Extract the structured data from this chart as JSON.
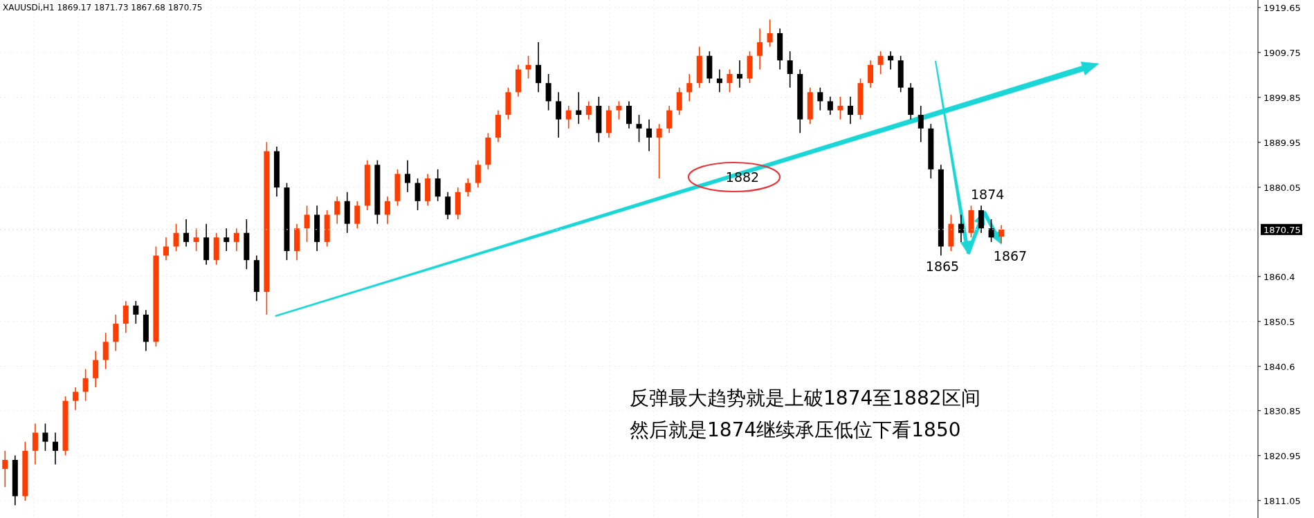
{
  "chart_data": {
    "type": "candlestick",
    "title": "XAUUSDi,H1  1869.17 1871.73 1867.68 1870.75",
    "categories": [
      null,
      null,
      null,
      null,
      null,
      null,
      null,
      null,
      null,
      null,
      null,
      null,
      null,
      null,
      null,
      null,
      null,
      null,
      null,
      null,
      null,
      null,
      null,
      null,
      null,
      null,
      null,
      null,
      null,
      null,
      null,
      null,
      null,
      null,
      null,
      null,
      null,
      null,
      null,
      null,
      null,
      null,
      null,
      null,
      null,
      null,
      null,
      null,
      null,
      null,
      null,
      null,
      null,
      null,
      null,
      null,
      null,
      null,
      null,
      null,
      null,
      null,
      null,
      null,
      null,
      null,
      null,
      null,
      null,
      null,
      null,
      null,
      null,
      null,
      null,
      null,
      null,
      null,
      null,
      null,
      null,
      null,
      null,
      null,
      null,
      null,
      null,
      null,
      null,
      null,
      null,
      null,
      null,
      null,
      null,
      null,
      null,
      null,
      null,
      null,
      null,
      null,
      null,
      null,
      null,
      null,
      null,
      null,
      null,
      null,
      null,
      null,
      null,
      null,
      null,
      null,
      null,
      null,
      null,
      null,
      null,
      null,
      null,
      null,
      null
    ],
    "ohlc": [
      [
        1818,
        1822,
        1814,
        1820
      ],
      [
        1820,
        1821,
        1810,
        1812
      ],
      [
        1812,
        1824,
        1811,
        1822
      ],
      [
        1822,
        1828,
        1819,
        1826
      ],
      [
        1826,
        1828,
        1822,
        1824
      ],
      [
        1824,
        1826,
        1819,
        1822
      ],
      [
        1822,
        1834,
        1821,
        1833
      ],
      [
        1833,
        1836,
        1831,
        1835
      ],
      [
        1835,
        1840,
        1833,
        1838
      ],
      [
        1838,
        1844,
        1836,
        1842
      ],
      [
        1842,
        1848,
        1840,
        1846
      ],
      [
        1846,
        1852,
        1844,
        1850
      ],
      [
        1850,
        1855,
        1848,
        1854
      ],
      [
        1854,
        1855,
        1850,
        1852
      ],
      [
        1852,
        1853,
        1844,
        1846
      ],
      [
        1846,
        1867,
        1845,
        1865
      ],
      [
        1865,
        1869,
        1864,
        1867
      ],
      [
        1867,
        1872,
        1866,
        1870
      ],
      [
        1870,
        1873,
        1867,
        1868
      ],
      [
        1868,
        1871,
        1866,
        1869
      ],
      [
        1869,
        1872,
        1863,
        1864
      ],
      [
        1864,
        1870,
        1863,
        1869
      ],
      [
        1869,
        1871,
        1866,
        1868
      ],
      [
        1868,
        1871,
        1866,
        1870
      ],
      [
        1870,
        1873,
        1862,
        1864
      ],
      [
        1864,
        1865,
        1855,
        1857
      ],
      [
        1857,
        1890,
        1852,
        1888
      ],
      [
        1888,
        1889,
        1878,
        1880
      ],
      [
        1880,
        1881,
        1864,
        1866
      ],
      [
        1866,
        1872,
        1864,
        1871
      ],
      [
        1871,
        1876,
        1868,
        1874
      ],
      [
        1874,
        1876,
        1866,
        1868
      ],
      [
        1868,
        1875,
        1867,
        1874
      ],
      [
        1874,
        1878,
        1872,
        1877
      ],
      [
        1877,
        1879,
        1870,
        1872
      ],
      [
        1872,
        1877,
        1871,
        1876
      ],
      [
        1876,
        1886,
        1875,
        1885
      ],
      [
        1885,
        1886,
        1872,
        1874
      ],
      [
        1874,
        1878,
        1872,
        1877
      ],
      [
        1877,
        1884,
        1876,
        1883
      ],
      [
        1883,
        1886,
        1879,
        1881
      ],
      [
        1881,
        1882,
        1875,
        1877
      ],
      [
        1877,
        1883,
        1876,
        1882
      ],
      [
        1882,
        1884,
        1877,
        1878
      ],
      [
        1878,
        1879,
        1873,
        1874
      ],
      [
        1874,
        1880,
        1873,
        1879
      ],
      [
        1879,
        1882,
        1878,
        1881
      ],
      [
        1881,
        1886,
        1880,
        1885
      ],
      [
        1885,
        1892,
        1884,
        1891
      ],
      [
        1891,
        1897,
        1890,
        1896
      ],
      [
        1896,
        1902,
        1895,
        1901
      ],
      [
        1901,
        1907,
        1900,
        1906
      ],
      [
        1906,
        1909,
        1904,
        1907
      ],
      [
        1907,
        1912,
        1901,
        1903
      ],
      [
        1903,
        1905,
        1897,
        1899
      ],
      [
        1899,
        1901,
        1891,
        1895
      ],
      [
        1895,
        1898,
        1893,
        1897
      ],
      [
        1897,
        1901,
        1894,
        1896
      ],
      [
        1896,
        1899,
        1895,
        1898
      ],
      [
        1898,
        1900,
        1890,
        1892
      ],
      [
        1892,
        1898,
        1891,
        1897
      ],
      [
        1897,
        1899,
        1895,
        1898
      ],
      [
        1898,
        1899,
        1893,
        1894
      ],
      [
        1894,
        1896,
        1890,
        1893
      ],
      [
        1893,
        1895,
        1888,
        1891
      ],
      [
        1891,
        1894,
        1882,
        1893
      ],
      [
        1893,
        1898,
        1892,
        1897
      ],
      [
        1897,
        1902,
        1896,
        1901
      ],
      [
        1901,
        1905,
        1899,
        1903
      ],
      [
        1903,
        1911,
        1902,
        1909
      ],
      [
        1909,
        1910,
        1903,
        1904
      ],
      [
        1904,
        1906,
        1901,
        1903
      ],
      [
        1903,
        1906,
        1901,
        1905
      ],
      [
        1905,
        1908,
        1902,
        1904
      ],
      [
        1904,
        1910,
        1903,
        1909
      ],
      [
        1909,
        1915,
        1906,
        1912
      ],
      [
        1912,
        1917,
        1911,
        1914
      ],
      [
        1914,
        1915,
        1906,
        1908
      ],
      [
        1908,
        1910,
        1902,
        1905
      ],
      [
        1905,
        1906,
        1892,
        1895
      ],
      [
        1895,
        1902,
        1894,
        1901
      ],
      [
        1901,
        1902,
        1897,
        1899
      ],
      [
        1899,
        1900,
        1896,
        1897
      ],
      [
        1897,
        1900,
        1895,
        1898
      ],
      [
        1898,
        1900,
        1894,
        1896
      ],
      [
        1896,
        1904,
        1895,
        1903
      ],
      [
        1903,
        1908,
        1902,
        1907
      ],
      [
        1907,
        1910,
        1905,
        1909
      ],
      [
        1909,
        1910,
        1906,
        1908
      ],
      [
        1908,
        1909,
        1901,
        1902
      ],
      [
        1902,
        1903,
        1895,
        1896
      ],
      [
        1896,
        1898,
        1890,
        1893
      ],
      [
        1893,
        1894,
        1882,
        1884
      ],
      [
        1884,
        1885,
        1865,
        1867
      ],
      [
        1867,
        1874,
        1866,
        1872
      ],
      [
        1872,
        1874,
        1868,
        1870
      ],
      [
        1870,
        1876,
        1869,
        1875
      ],
      [
        1875,
        1876,
        1870,
        1871
      ],
      [
        1871,
        1873,
        1868,
        1869
      ],
      [
        1869.17,
        1871.73,
        1867.68,
        1870.75
      ],
      null,
      null,
      null,
      null,
      null,
      null,
      null,
      null,
      null,
      null,
      null,
      null,
      null,
      null,
      null,
      null,
      null,
      null,
      null,
      null,
      null,
      null,
      null,
      null,
      null
    ],
    "colors": [
      "#ff3d00",
      "#000000",
      "#ff3d00",
      "#ff3d00",
      "#000000",
      "#000000",
      "#ff3d00",
      "#ff3d00",
      "#ff3d00",
      "#ff3d00",
      "#ff3d00",
      "#ff3d00",
      "#ff3d00",
      "#000000",
      "#000000",
      "#ff3d00",
      "#ff3d00",
      "#ff3d00",
      "#000000",
      "#ff3d00",
      "#000000",
      "#ff3d00",
      "#000000",
      "#ff3d00",
      "#000000",
      "#000000",
      "#ff3d00",
      "#000000",
      "#000000",
      "#ff3d00",
      "#ff3d00",
      "#000000",
      "#ff3d00",
      "#ff3d00",
      "#000000",
      "#ff3d00",
      "#ff3d00",
      "#000000",
      "#ff3d00",
      "#ff3d00",
      "#000000",
      "#000000",
      "#ff3d00",
      "#000000",
      "#000000",
      "#ff3d00",
      "#ff3d00",
      "#ff3d00",
      "#ff3d00",
      "#ff3d00",
      "#ff3d00",
      "#ff3d00",
      "#ff3d00",
      "#000000",
      "#000000",
      "#000000",
      "#ff3d00",
      "#000000",
      "#ff3d00",
      "#000000",
      "#ff3d00",
      "#ff3d00",
      "#000000",
      "#000000",
      "#000000",
      "#ff3d00",
      "#ff3d00",
      "#ff3d00",
      "#ff3d00",
      "#ff3d00",
      "#000000",
      "#000000",
      "#ff3d00",
      "#000000",
      "#ff3d00",
      "#ff3d00",
      "#ff3d00",
      "#000000",
      "#000000",
      "#000000",
      "#ff3d00",
      "#000000",
      "#000000",
      "#ff3d00",
      "#000000",
      "#ff3d00",
      "#ff3d00",
      "#ff3d00",
      "#000000",
      "#000000",
      "#000000",
      "#000000",
      "#000000",
      "#000000",
      "#ff3d00",
      "#000000",
      "#ff3d00",
      "#000000",
      "#000000",
      "#ff3d00",
      null,
      null,
      null,
      null,
      null,
      null,
      null,
      null,
      null,
      null,
      null,
      null,
      null,
      null,
      null,
      null,
      null,
      null,
      null,
      null,
      null,
      null,
      null,
      null,
      null
    ],
    "ylim": [
      1807.2,
      1921.3
    ],
    "yticks": [
      1811.05,
      1820.95,
      1830.85,
      1840.6,
      1850.5,
      1860.4,
      1880.05,
      1889.95,
      1899.85,
      1909.75,
      1919.65
    ],
    "ref_lines": [
      {
        "axis": "y",
        "value": 1870.75,
        "label": "1870.75"
      }
    ],
    "grid": true,
    "annotations": [
      "1882",
      "1874",
      "1865",
      "1867",
      "反弹最大趋势就是上破1874至1882区间",
      "然后就是1874继续承压低位下看1850"
    ]
  }
}
